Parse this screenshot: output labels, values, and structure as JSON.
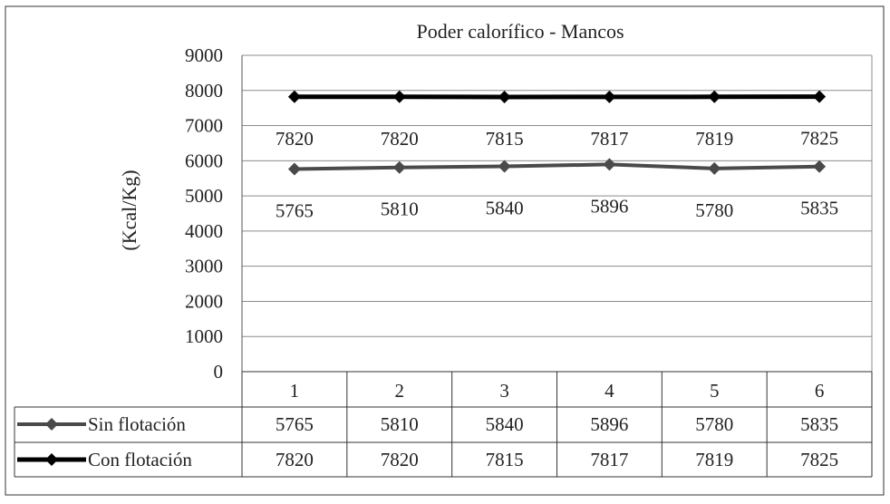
{
  "chart_data": {
    "type": "line",
    "title": "Poder calorífico - Mancos",
    "xlabel": "",
    "ylabel": "(Kcal/Kg)",
    "categories": [
      "1",
      "2",
      "3",
      "4",
      "5",
      "6"
    ],
    "ylim": [
      0,
      9000
    ],
    "yticks": [
      "0",
      "1000",
      "2000",
      "3000",
      "4000",
      "5000",
      "6000",
      "7000",
      "8000",
      "9000"
    ],
    "grid": true,
    "legend": "data-table",
    "series": [
      {
        "name": "Sin flotación",
        "color": "#4a4a4a",
        "marker": "diamond",
        "values": [
          5765,
          5810,
          5840,
          5896,
          5780,
          5835
        ]
      },
      {
        "name": "Con flotación",
        "color": "#000000",
        "marker": "diamond",
        "values": [
          7820,
          7820,
          7815,
          7817,
          7819,
          7825
        ]
      }
    ]
  }
}
